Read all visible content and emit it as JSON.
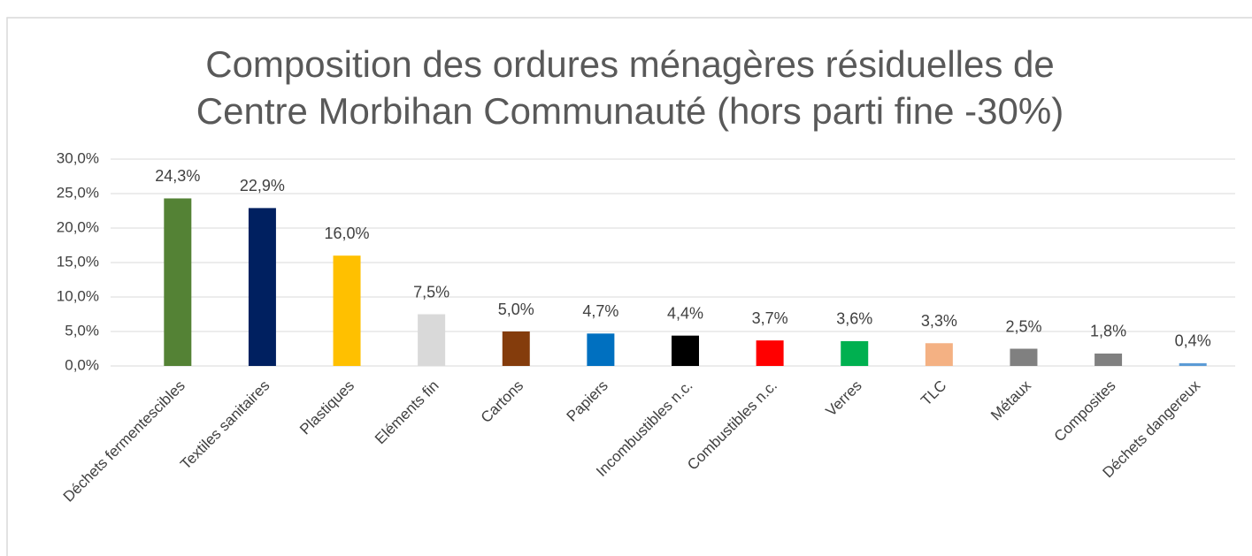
{
  "chart_data": {
    "type": "bar",
    "title": [
      "Composition des ordures ménagères résiduelles de",
      "Centre Morbihan Communauté (hors parti fine -30%)"
    ],
    "categories": [
      "Déchets fermentescibles",
      "Textiles sanitaires",
      "Plastiques",
      "Eléments fin",
      "Cartons",
      "Papiers",
      "Incombustibles n.c.",
      "Combustibles n.c.",
      "Verres",
      "TLC",
      "Métaux",
      "Composites",
      "Déchets dangereux"
    ],
    "values": [
      24.3,
      22.9,
      16.0,
      7.5,
      5.0,
      4.7,
      4.4,
      3.7,
      3.6,
      3.3,
      2.5,
      1.8,
      0.4
    ],
    "value_labels": [
      "24,3%",
      "22,9%",
      "16,0%",
      "7,5%",
      "5,0%",
      "4,7%",
      "4,4%",
      "3,7%",
      "3,6%",
      "3,3%",
      "2,5%",
      "1,8%",
      "0,4%"
    ],
    "colors": [
      "#548235",
      "#002060",
      "#ffc000",
      "#d9d9d9",
      "#843c0c",
      "#0070c0",
      "#000000",
      "#ff0000",
      "#00b050",
      "#f4b183",
      "#808080",
      "#808080",
      "#5b9bd5"
    ],
    "ylim": [
      0,
      30
    ],
    "yticks": [
      {
        "value": 0,
        "label": "0,0%"
      },
      {
        "value": 5,
        "label": "5,0%"
      },
      {
        "value": 10,
        "label": "10,0%"
      },
      {
        "value": 15,
        "label": "15,0%"
      },
      {
        "value": 20,
        "label": "20,0%"
      },
      {
        "value": 25,
        "label": "25,0%"
      },
      {
        "value": 30,
        "label": "30,0%"
      }
    ],
    "grid": true
  }
}
